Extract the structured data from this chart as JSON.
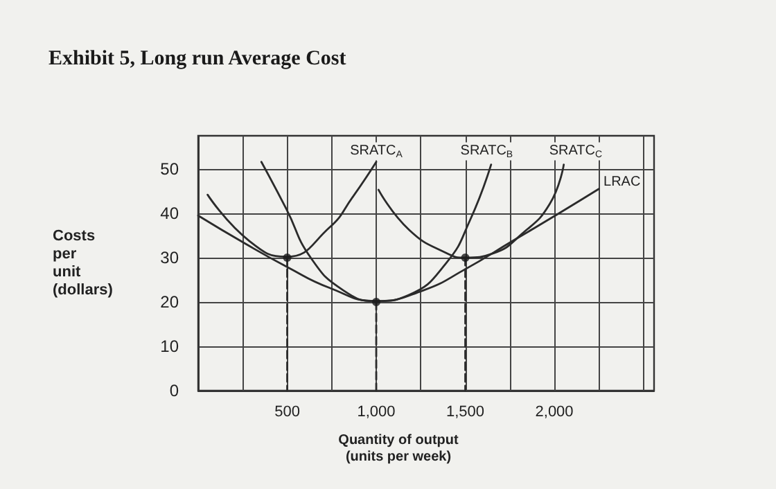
{
  "chart_data": {
    "type": "line",
    "title": "Exhibit 5, Long run Average Cost",
    "xlabel": "Quantity of output\n(units per week)",
    "ylabel": "Costs\nper\nunit\n(dollars)",
    "xlim": [
      0,
      2560
    ],
    "ylim": [
      0,
      57.5
    ],
    "xticks": [
      {
        "value": 250,
        "label": null
      },
      {
        "value": 500,
        "label": "500"
      },
      {
        "value": 750,
        "label": null
      },
      {
        "value": 1000,
        "label": "1,000"
      },
      {
        "value": 1250,
        "label": null
      },
      {
        "value": 1500,
        "label": "1,500"
      },
      {
        "value": 1750,
        "label": null
      },
      {
        "value": 2000,
        "label": "2,000"
      },
      {
        "value": 2250,
        "label": null
      },
      {
        "value": 2500,
        "label": null
      }
    ],
    "yticks": [
      0,
      10,
      20,
      30,
      40,
      50
    ],
    "grid": true,
    "marker": "none",
    "line_style": "solid",
    "series": [
      {
        "color": "#2b2b2b",
        "x": [
          53,
          289,
          495,
          737,
          868,
          1000
        ],
        "values": [
          44.2,
          33.7,
          30.2,
          36.8,
          43.7,
          51.6
        ]
      },
      {
        "color": "#2b2b2b",
        "x": [
          355,
          495,
          632,
          816,
          1000,
          1184,
          1395,
          1526,
          1645
        ],
        "values": [
          51.6,
          41,
          30,
          22.6,
          20.2,
          21.6,
          28.9,
          38.4,
          51
        ]
      },
      {
        "color": "#2b2b2b",
        "x": [
          1013,
          1184,
          1395,
          1500,
          1658,
          1816,
          1974,
          2053
        ],
        "values": [
          45.3,
          36.3,
          31,
          30,
          31,
          35.3,
          42.1,
          51
        ]
      },
      {
        "color": "#2b2b2b",
        "x": [
          0,
          263,
          500,
          737,
          1000,
          1263,
          1500,
          1763,
          2026,
          2250
        ],
        "values": [
          39.5,
          33.2,
          27.9,
          23.2,
          20.2,
          22.6,
          27.4,
          33.7,
          40,
          45.5
        ]
      },
      {
        "type": "line",
        "line_style": "dashed",
        "color": "#2b2b2b",
        "x": [
          500,
          500
        ],
        "values": [
          30,
          0
        ]
      },
      {
        "type": "line",
        "line_style": "dashed",
        "color": "#2b2b2b",
        "x": [
          1000,
          1000
        ],
        "values": [
          20,
          0
        ]
      },
      {
        "type": "line",
        "line_style": "dashed",
        "color": "#2b2b2b",
        "x": [
          1500,
          1500
        ],
        "values": [
          30,
          0
        ]
      },
      {
        "type": "scatter",
        "marker": "circle",
        "color": "#1a1a1a",
        "x": [
          500,
          1000,
          1500
        ],
        "values": [
          30,
          20,
          30
        ]
      }
    ],
    "annotations": [
      {
        "text": "SRATC$_{A}$",
        "x": 1000,
        "y": 54
      },
      {
        "text": "SRATC$_{B}$",
        "x": 1620,
        "y": 54
      },
      {
        "text": "SRATC$_{C}$",
        "x": 2120,
        "y": 54
      },
      {
        "text": "LRAC",
        "x": 2380,
        "y": 47
      }
    ]
  }
}
